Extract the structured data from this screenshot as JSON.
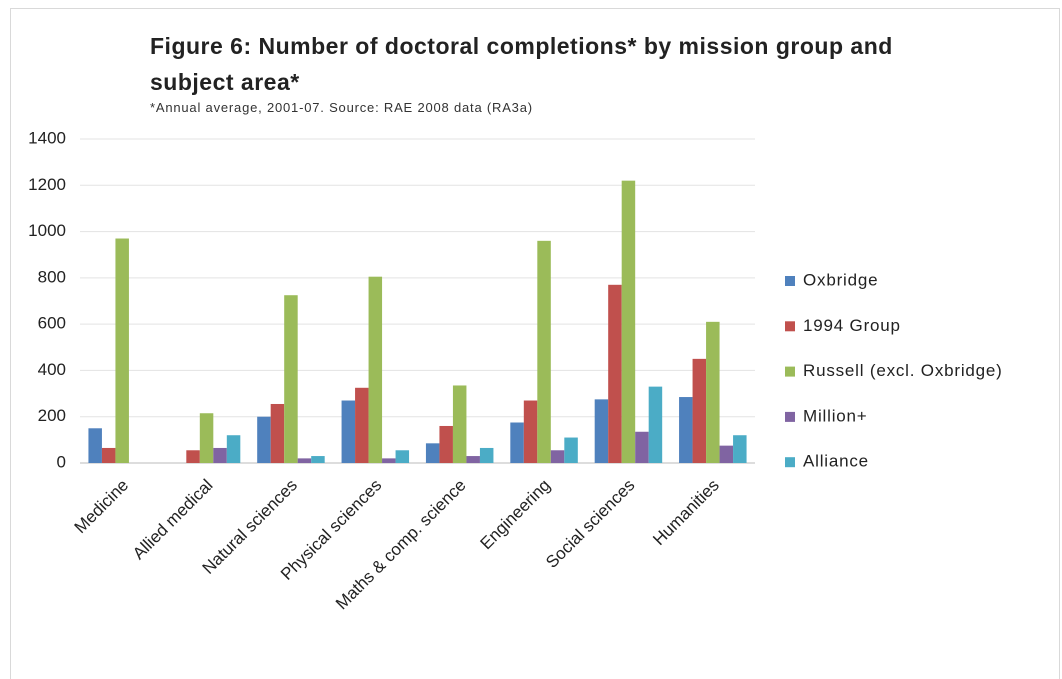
{
  "chart_data": {
    "type": "bar",
    "title": "Figure 6:  Number of doctoral completions* by mission group and subject area*",
    "subtitle": "*Annual average, 2001-07.  Source: RAE 2008 data (RA3a)",
    "categories": [
      "Medicine",
      "Allied medical",
      "Natural sciences",
      "Physical sciences",
      "Maths & comp. science",
      "Engineering",
      "Social sciences",
      "Humanities"
    ],
    "series": [
      {
        "name": "Oxbridge",
        "color": "#4f81bd",
        "values": [
          150,
          0,
          200,
          270,
          85,
          175,
          275,
          285
        ]
      },
      {
        "name": "1994 Group",
        "color": "#c0504d",
        "values": [
          65,
          55,
          255,
          325,
          160,
          270,
          770,
          450
        ]
      },
      {
        "name": "Russell (excl. Oxbridge)",
        "color": "#9bbb59",
        "values": [
          970,
          215,
          725,
          805,
          335,
          960,
          1220,
          610
        ]
      },
      {
        "name": "Million+",
        "color": "#8064a2",
        "values": [
          0,
          65,
          20,
          20,
          30,
          55,
          135,
          75
        ]
      },
      {
        "name": "Alliance",
        "color": "#4bacc6",
        "values": [
          0,
          120,
          30,
          55,
          65,
          110,
          330,
          120
        ]
      }
    ],
    "ylim": [
      0,
      1400
    ],
    "yticks": [
      0,
      200,
      400,
      600,
      800,
      1000,
      1200,
      1400
    ],
    "grid": true,
    "legend": "right"
  }
}
